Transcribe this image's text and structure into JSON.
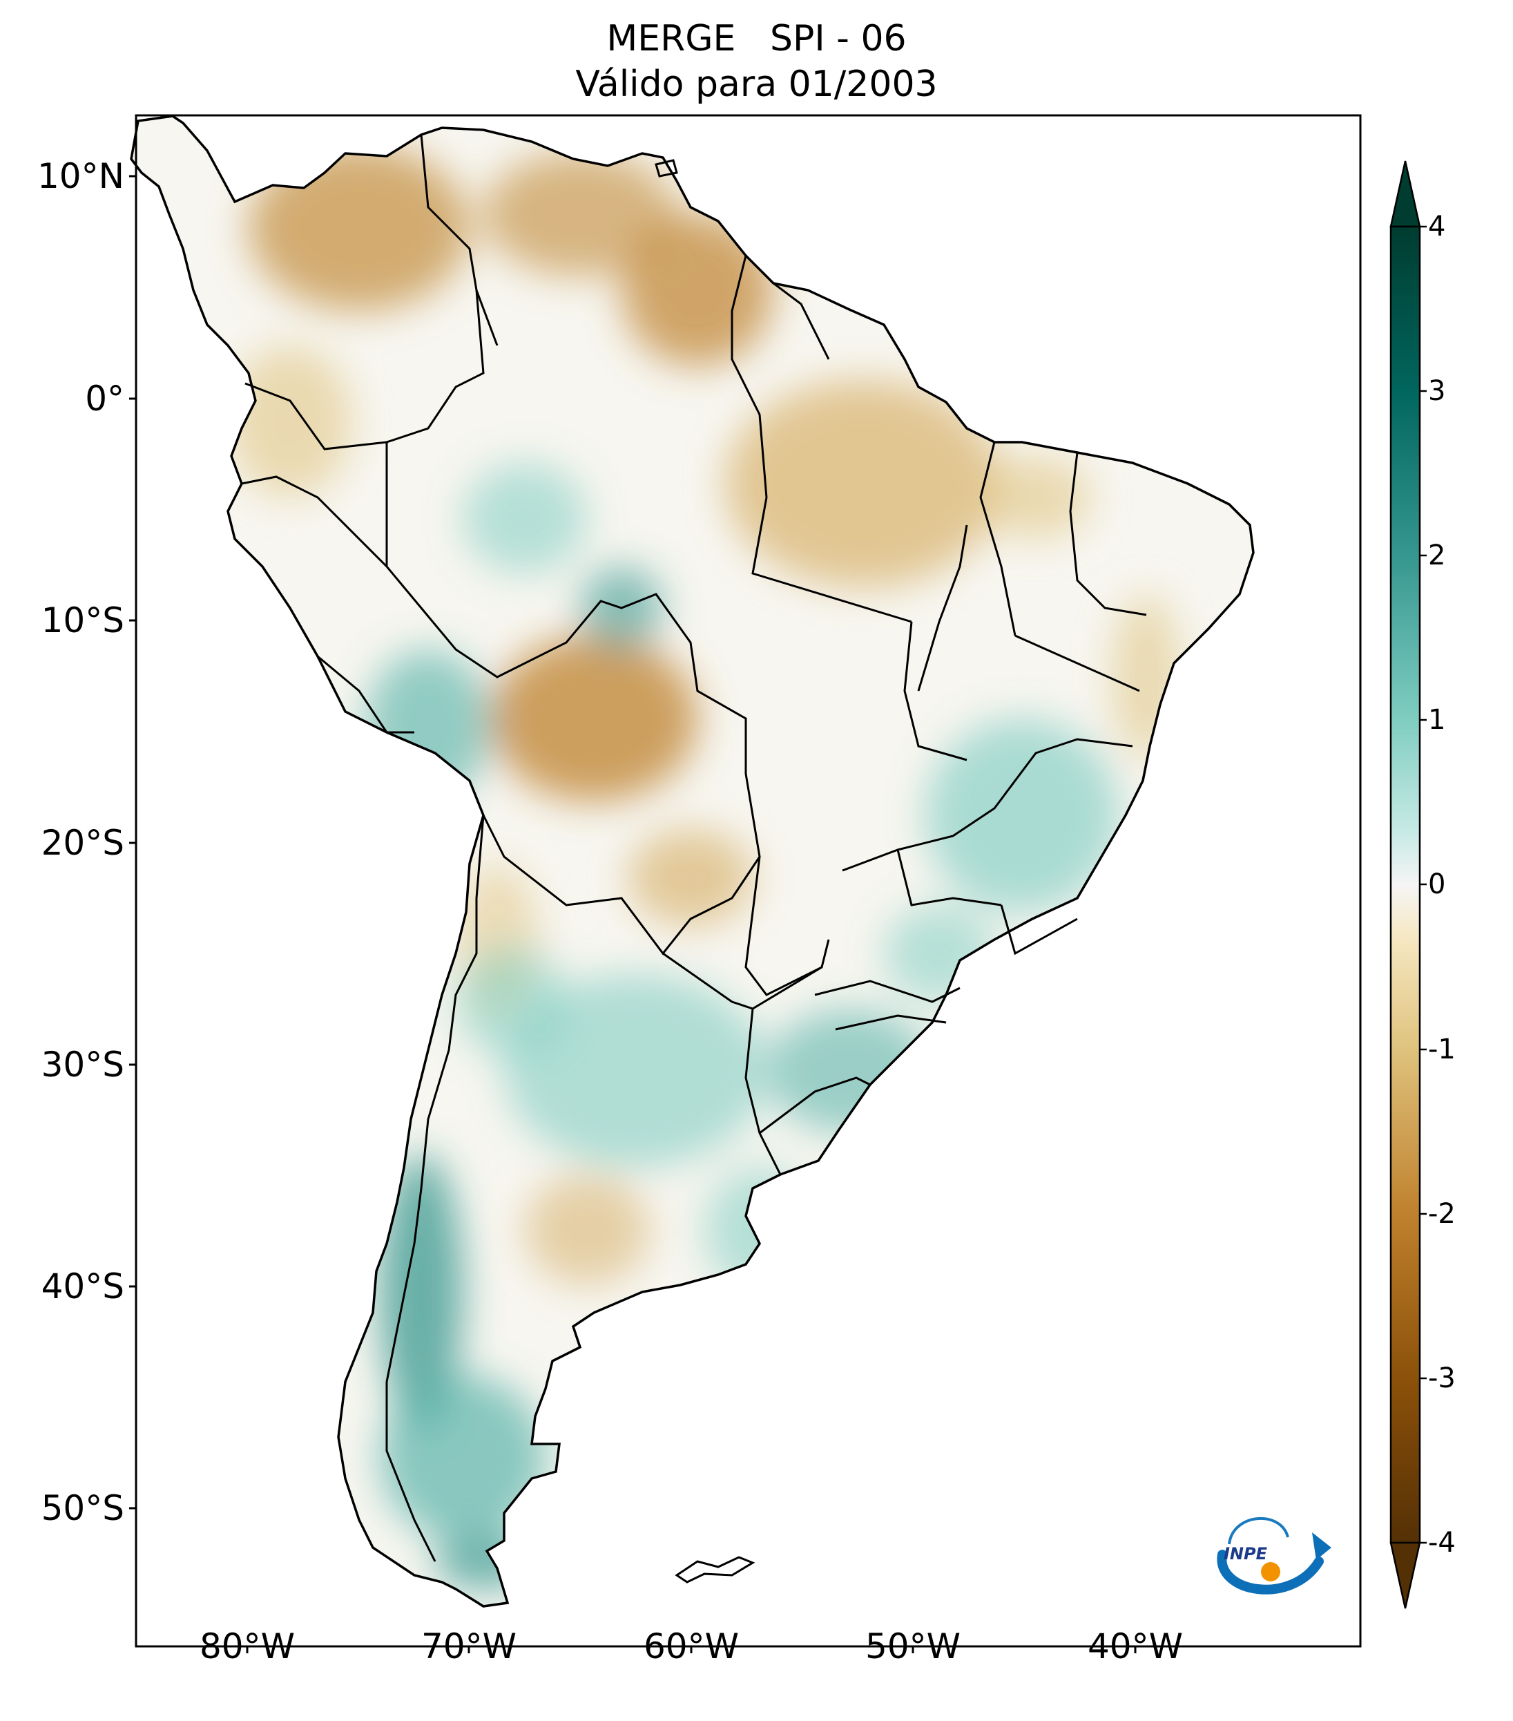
{
  "title": {
    "line1": "MERGE   SPI - 06",
    "line2": "Válido para 01/2003"
  },
  "map": {
    "variable": "SPI - 06",
    "source": "MERGE",
    "region": "South America",
    "lat_range": [
      -56,
      13
    ],
    "lon_range": [
      -85,
      -30
    ],
    "lat_ticks": [
      "10°N",
      "0°",
      "10°S",
      "20°S",
      "30°S",
      "40°S",
      "50°S"
    ],
    "lon_ticks": [
      "80°W",
      "70°W",
      "60°W",
      "50°W",
      "40°W"
    ]
  },
  "colorbar": {
    "colormap": "BrBG",
    "min": -4,
    "max": 4,
    "extend": "both",
    "ticks": [
      "4",
      "3",
      "2",
      "1",
      "0",
      "-1",
      "-2",
      "-3",
      "-4"
    ],
    "colors": {
      "dry_extreme": "#543005",
      "dry": "#bf812d",
      "dry_light": "#f6e8c3",
      "neutral": "#f5f5f5",
      "wet_light": "#c7eae5",
      "wet": "#35978f",
      "wet_extreme": "#003c30"
    }
  },
  "logo": {
    "text": "INPE"
  }
}
